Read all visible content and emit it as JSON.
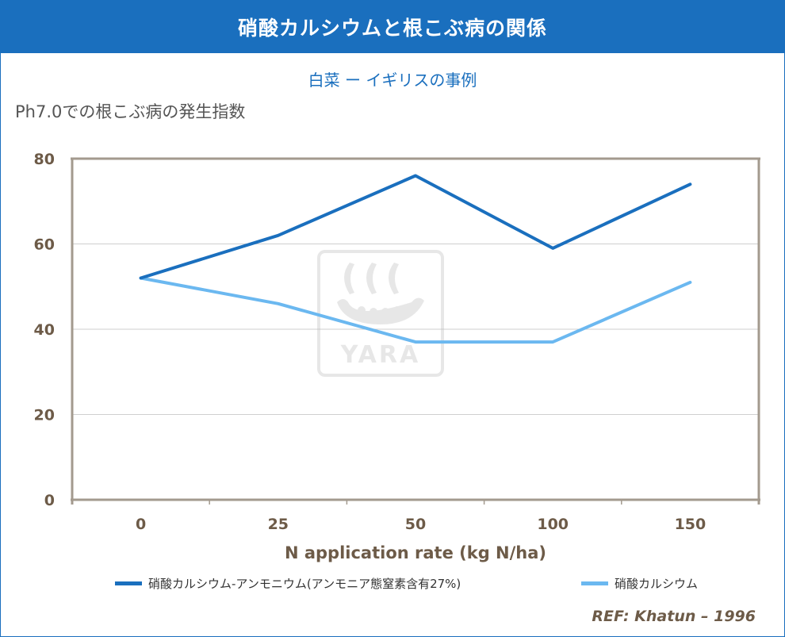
{
  "header": {
    "title": "硝酸カルシウムと根こぶ病の関係",
    "subtitle": "白菜 ー イギリスの事例"
  },
  "chart_data": {
    "type": "line",
    "ylabel": "Ph7.0での根こぶ病の発生指数",
    "xlabel": "N application rate (kg N/ha)",
    "categories": [
      "0",
      "25",
      "50",
      "100",
      "150"
    ],
    "ylim": [
      0,
      80
    ],
    "yticks": [
      0,
      20,
      40,
      60,
      80
    ],
    "grid": true,
    "legend_position": "bottom",
    "series": [
      {
        "name": "硝酸カルシウム-アンモニウム(アンモニア態窒素含有27%)",
        "values": [
          52,
          62,
          76,
          59,
          74
        ],
        "color": "#1a6fbe"
      },
      {
        "name": "硝酸カルシウム",
        "values": [
          52,
          46,
          37,
          37,
          51
        ],
        "color": "#6bb8f0"
      }
    ]
  },
  "watermark": {
    "brand": "YARA",
    "icon": "viking-ship-logo"
  },
  "footer": {
    "reference": "REF: Khatun – 1996"
  },
  "colors": {
    "banner": "#1a6fbe",
    "axis_text": "#6d5b48",
    "grid": "#cfcfcf",
    "axis": "#a39a8e"
  }
}
